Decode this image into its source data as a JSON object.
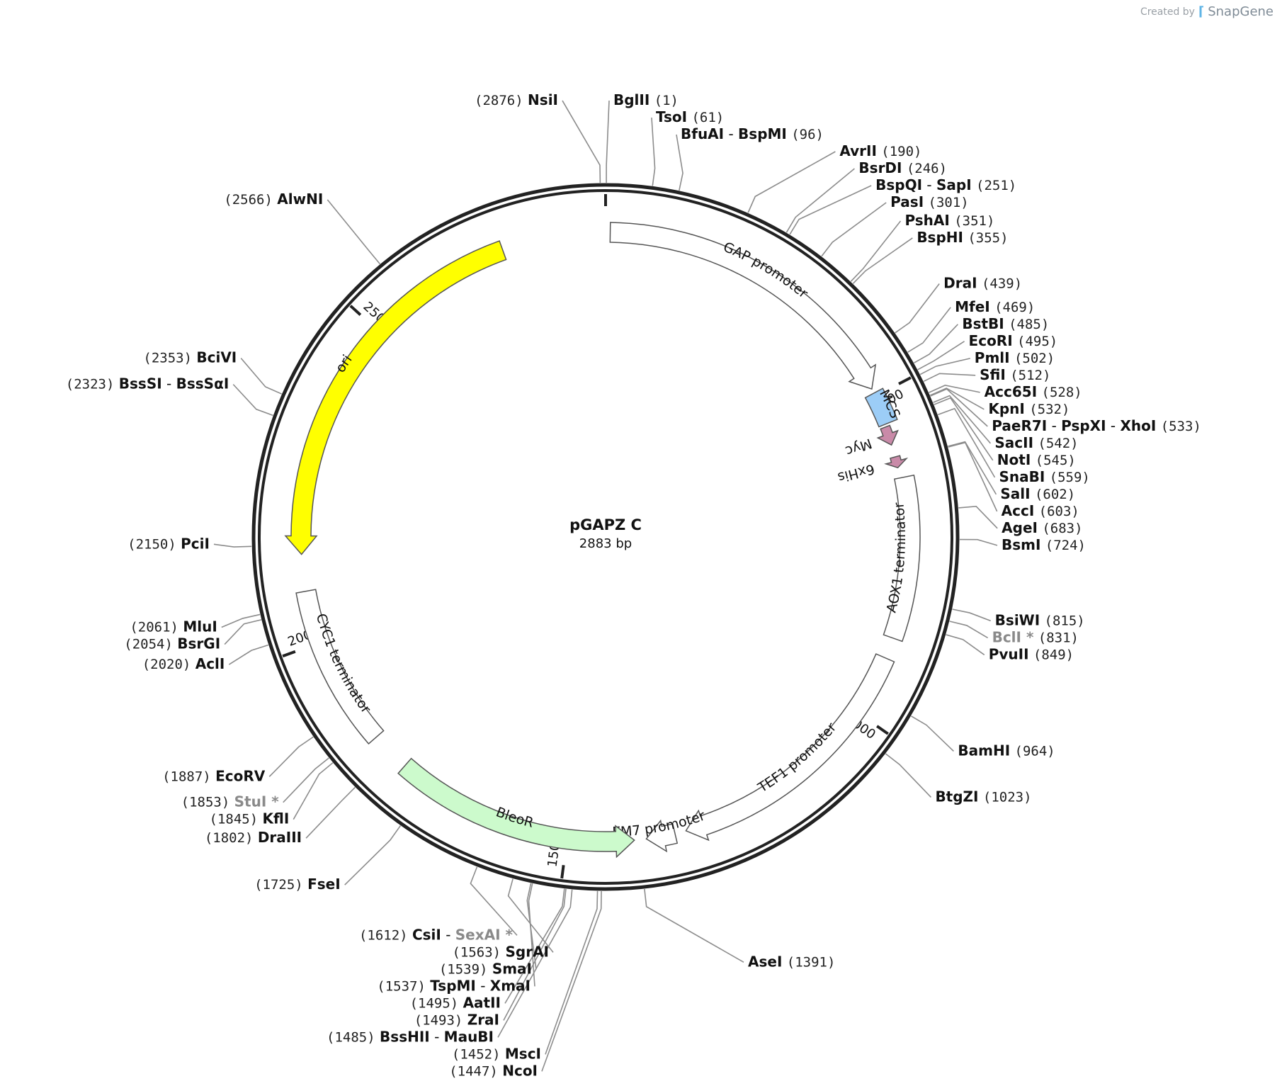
{
  "credit": {
    "created_by": "Created by",
    "brand": "SnapGene"
  },
  "plasmid": {
    "name": "pGAPZ C",
    "length_text": "2883 bp",
    "length": 2883
  },
  "ticks": [
    {
      "pos": 500,
      "label": "500"
    },
    {
      "pos": 1000,
      "label": "1000"
    },
    {
      "pos": 1500,
      "label": "1500"
    },
    {
      "pos": 2000,
      "label": "2000"
    },
    {
      "pos": 2500,
      "label": "2500"
    }
  ],
  "features": [
    {
      "id": "gap",
      "label": "GAP promoter",
      "start": 7,
      "end": 488,
      "strand": 1,
      "color": "#ffffff"
    },
    {
      "id": "mcs",
      "label": "MCS",
      "start": 495,
      "end": 545,
      "strand": 0,
      "color": "#9ccdf7"
    },
    {
      "id": "myc",
      "label": "Myc",
      "start": 549,
      "end": 578,
      "strand": 1,
      "color": "#c98aa8"
    },
    {
      "id": "his",
      "label": "6xHis",
      "start": 597,
      "end": 614,
      "strand": 1,
      "color": "#c98aa8"
    },
    {
      "id": "aox",
      "label": "AOX1 terminator",
      "start": 630,
      "end": 876,
      "strand": 0,
      "color": "#ffffff"
    },
    {
      "id": "tef",
      "label": "TEF1 promoter",
      "start": 908,
      "end": 1319,
      "strand": 1,
      "color": "#ffffff"
    },
    {
      "id": "em7",
      "label": "EM7 promoter",
      "start": 1336,
      "end": 1380,
      "strand": 1,
      "color": "#ffffff"
    },
    {
      "id": "bleo",
      "label": "BleoR",
      "start": 1398,
      "end": 1772,
      "strand": -1,
      "color": "#ccfacc"
    },
    {
      "id": "cyc",
      "label": "CYC1 terminator",
      "start": 1833,
      "end": 2080,
      "strand": 0,
      "color": "#ffffff"
    },
    {
      "id": "ori",
      "label": "ori",
      "start": 2136,
      "end": 2725,
      "strand": -1,
      "color": "#ffff00"
    }
  ],
  "sites": [
    {
      "parts": [
        {
          "name": "BglII"
        }
      ],
      "num": "(1)",
      "pos": 1
    },
    {
      "parts": [
        {
          "name": "TsoI"
        }
      ],
      "num": "(61)",
      "pos": 61
    },
    {
      "parts": [
        {
          "name": "BfuAI"
        },
        {
          "name": "BspMI"
        }
      ],
      "num": "(96)",
      "pos": 96
    },
    {
      "parts": [
        {
          "name": "AvrII"
        }
      ],
      "num": "(190)",
      "pos": 190
    },
    {
      "parts": [
        {
          "name": "BsrDI"
        }
      ],
      "num": "(246)",
      "pos": 246
    },
    {
      "parts": [
        {
          "name": "BspQI"
        },
        {
          "name": "SapI"
        }
      ],
      "num": "(251)",
      "pos": 251
    },
    {
      "parts": [
        {
          "name": "PasI"
        }
      ],
      "num": "(301)",
      "pos": 301
    },
    {
      "parts": [
        {
          "name": "PshAI"
        }
      ],
      "num": "(351)",
      "pos": 351
    },
    {
      "parts": [
        {
          "name": "BspHI"
        }
      ],
      "num": "(355)",
      "pos": 355
    },
    {
      "parts": [
        {
          "name": "DraI"
        }
      ],
      "num": "(439)",
      "pos": 439
    },
    {
      "parts": [
        {
          "name": "MfeI"
        }
      ],
      "num": "(469)",
      "pos": 469
    },
    {
      "parts": [
        {
          "name": "BstBI"
        }
      ],
      "num": "(485)",
      "pos": 485
    },
    {
      "parts": [
        {
          "name": "EcoRI"
        }
      ],
      "num": "(495)",
      "pos": 495
    },
    {
      "parts": [
        {
          "name": "PmlI"
        }
      ],
      "num": "(502)",
      "pos": 502
    },
    {
      "parts": [
        {
          "name": "SfiI"
        }
      ],
      "num": "(512)",
      "pos": 512
    },
    {
      "parts": [
        {
          "name": "Acc65I"
        }
      ],
      "num": "(528)",
      "pos": 528
    },
    {
      "parts": [
        {
          "name": "KpnI"
        }
      ],
      "num": "(532)",
      "pos": 532
    },
    {
      "parts": [
        {
          "name": "PaeR7I"
        },
        {
          "name": "PspXI"
        },
        {
          "name": "XhoI"
        }
      ],
      "num": "(533)",
      "pos": 533
    },
    {
      "parts": [
        {
          "name": "SacII"
        }
      ],
      "num": "(542)",
      "pos": 542
    },
    {
      "parts": [
        {
          "name": "NotI"
        }
      ],
      "num": "(545)",
      "pos": 545
    },
    {
      "parts": [
        {
          "name": "SnaBI"
        }
      ],
      "num": "(559)",
      "pos": 559
    },
    {
      "parts": [
        {
          "name": "SalI"
        }
      ],
      "num": "(602)",
      "pos": 602
    },
    {
      "parts": [
        {
          "name": "AccI"
        }
      ],
      "num": "(603)",
      "pos": 603
    },
    {
      "parts": [
        {
          "name": "AgeI"
        }
      ],
      "num": "(683)",
      "pos": 683
    },
    {
      "parts": [
        {
          "name": "BsmI"
        }
      ],
      "num": "(724)",
      "pos": 724
    },
    {
      "parts": [
        {
          "name": "BsiWI"
        }
      ],
      "num": "(815)",
      "pos": 815
    },
    {
      "parts": [
        {
          "name": "BclI *",
          "grey": true
        }
      ],
      "num": "(831)",
      "pos": 831
    },
    {
      "parts": [
        {
          "name": "PvuII"
        }
      ],
      "num": "(849)",
      "pos": 849
    },
    {
      "parts": [
        {
          "name": "BamHI"
        }
      ],
      "num": "(964)",
      "pos": 964
    },
    {
      "parts": [
        {
          "name": "BtgZI"
        }
      ],
      "num": "(1023)",
      "pos": 1023
    },
    {
      "parts": [
        {
          "name": "AseI"
        }
      ],
      "num": "(1391)",
      "pos": 1391
    },
    {
      "parts": [
        {
          "name": "NcoI"
        }
      ],
      "num": "(1447)",
      "pos": 1447
    },
    {
      "parts": [
        {
          "name": "MscI"
        }
      ],
      "num": "(1452)",
      "pos": 1452
    },
    {
      "parts": [
        {
          "name": "BssHII"
        },
        {
          "name": "MauBI"
        }
      ],
      "num": "(1485)",
      "pos": 1485
    },
    {
      "parts": [
        {
          "name": "ZraI"
        }
      ],
      "num": "(1493)",
      "pos": 1493
    },
    {
      "parts": [
        {
          "name": "AatII"
        }
      ],
      "num": "(1495)",
      "pos": 1495
    },
    {
      "parts": [
        {
          "name": "TspMI"
        },
        {
          "name": "XmaI"
        }
      ],
      "num": "(1537)",
      "pos": 1537
    },
    {
      "parts": [
        {
          "name": "SmaI"
        }
      ],
      "num": "(1539)",
      "pos": 1539
    },
    {
      "parts": [
        {
          "name": "SgrAI"
        }
      ],
      "num": "(1563)",
      "pos": 1563
    },
    {
      "parts": [
        {
          "name": "CsiI"
        },
        {
          "name": "SexAI *",
          "grey": true
        }
      ],
      "num": "(1612)",
      "pos": 1612
    },
    {
      "parts": [
        {
          "name": "FseI"
        }
      ],
      "num": "(1725)",
      "pos": 1725
    },
    {
      "parts": [
        {
          "name": "DraIII"
        }
      ],
      "num": "(1802)",
      "pos": 1802
    },
    {
      "parts": [
        {
          "name": "KflI"
        }
      ],
      "num": "(1845)",
      "pos": 1845
    },
    {
      "parts": [
        {
          "name": "StuI *",
          "grey": true
        }
      ],
      "num": "(1853)",
      "pos": 1853
    },
    {
      "parts": [
        {
          "name": "EcoRV"
        }
      ],
      "num": "(1887)",
      "pos": 1887
    },
    {
      "parts": [
        {
          "name": "AclI"
        }
      ],
      "num": "(2020)",
      "pos": 2020
    },
    {
      "parts": [
        {
          "name": "BsrGI"
        }
      ],
      "num": "(2054)",
      "pos": 2054
    },
    {
      "parts": [
        {
          "name": "MluI"
        }
      ],
      "num": "(2061)",
      "pos": 2061
    },
    {
      "parts": [
        {
          "name": "PciI"
        }
      ],
      "num": "(2150)",
      "pos": 2150
    },
    {
      "parts": [
        {
          "name": "BssSI"
        },
        {
          "name": "BssSαI"
        }
      ],
      "num": "(2323)",
      "pos": 2323
    },
    {
      "parts": [
        {
          "name": "BciVI"
        }
      ],
      "num": "(2353)",
      "pos": 2353
    },
    {
      "parts": [
        {
          "name": "AlwNI"
        }
      ],
      "num": "(2566)",
      "pos": 2566
    },
    {
      "parts": [
        {
          "name": "NsiI"
        }
      ],
      "num": "(2876)",
      "pos": 2876
    }
  ]
}
